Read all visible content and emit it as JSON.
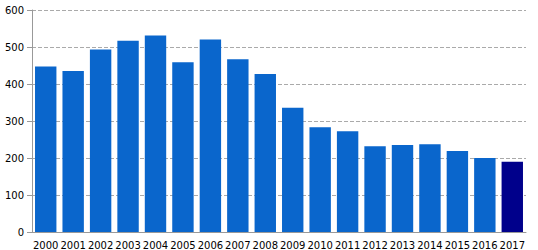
{
  "chart_data": {
    "type": "bar",
    "categories": [
      "2000",
      "2001",
      "2002",
      "2003",
      "2004",
      "2005",
      "2006",
      "2007",
      "2008",
      "2009",
      "2010",
      "2011",
      "2012",
      "2013",
      "2014",
      "2015",
      "2016",
      "2017"
    ],
    "values": [
      447,
      435,
      493,
      517,
      531,
      459,
      520,
      467,
      427,
      336,
      283,
      272,
      232,
      235,
      237,
      219,
      200,
      190
    ],
    "colors": [
      "#0a66cc",
      "#0a66cc",
      "#0a66cc",
      "#0a66cc",
      "#0a66cc",
      "#0a66cc",
      "#0a66cc",
      "#0a66cc",
      "#0a66cc",
      "#0a66cc",
      "#0a66cc",
      "#0a66cc",
      "#0a66cc",
      "#0a66cc",
      "#0a66cc",
      "#0a66cc",
      "#0a66cc",
      "#00008b"
    ],
    "ylim": [
      0,
      600
    ],
    "yticks": [
      0,
      100,
      200,
      300,
      400,
      500,
      600
    ],
    "grid": true
  }
}
